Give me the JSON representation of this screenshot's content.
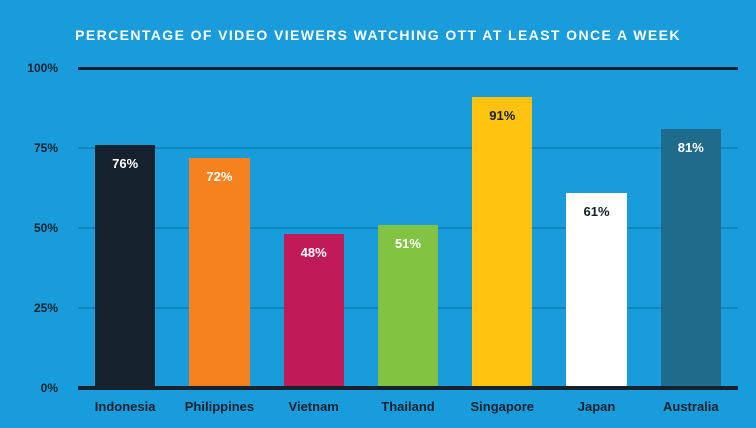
{
  "colors": {
    "background": "#189CDB",
    "title_text": "#FFFFFF",
    "axis_line": "#15222D",
    "gridline": "#0E86C0",
    "tick_text": "#15222D"
  },
  "chart_data": {
    "type": "bar",
    "title": "PERCENTAGE OF VIDEO VIEWERS WATCHING OTT AT LEAST ONCE A WEEK",
    "categories": [
      "Indonesia",
      "Philippines",
      "Vietnam",
      "Thailand",
      "Singapore",
      "Japan",
      "Australia"
    ],
    "values": [
      76,
      72,
      48,
      51,
      91,
      61,
      81
    ],
    "value_labels": [
      "76%",
      "72%",
      "48%",
      "51%",
      "91%",
      "61%",
      "81%"
    ],
    "bar_colors": [
      "#15222D",
      "#F6821F",
      "#C11A58",
      "#82C341",
      "#FFC20E",
      "#FFFFFF",
      "#1E6B8B"
    ],
    "value_label_colors": [
      "#FFFFFF",
      "#FFFFFF",
      "#FFFFFF",
      "#FFFFFF",
      "#10202B",
      "#10202B",
      "#FFFFFF"
    ],
    "xlabel": "",
    "ylabel": "",
    "ylim": [
      0,
      100
    ],
    "y_ticks": [
      0,
      25,
      50,
      75,
      100
    ],
    "y_tick_labels": [
      "0%",
      "25%",
      "50%",
      "75%",
      "100%"
    ],
    "grid": true,
    "legend_position": "none"
  }
}
